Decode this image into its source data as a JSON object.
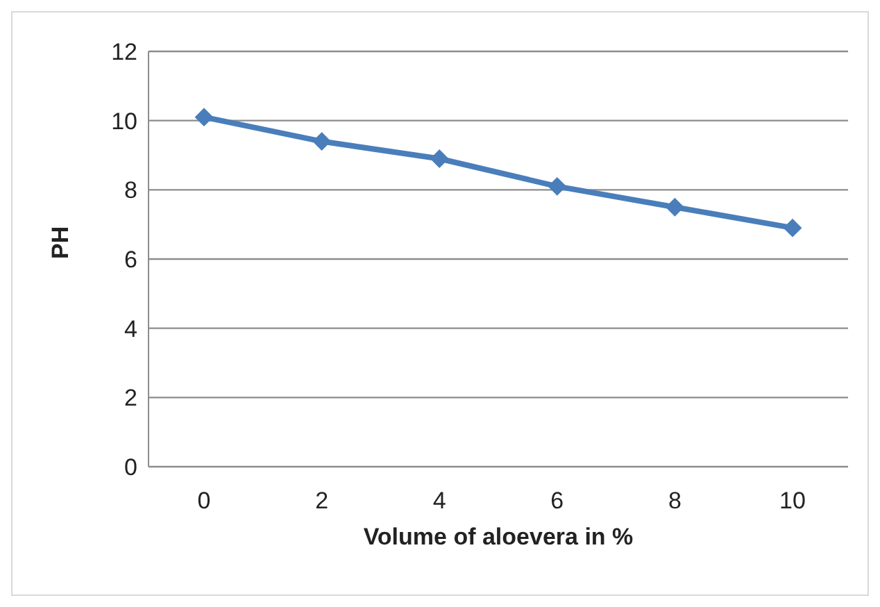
{
  "chart_data": {
    "type": "line",
    "xlabel": "Volume of  aloevera in %",
    "ylabel": "PH",
    "categories": [
      "0",
      "2",
      "4",
      "6",
      "8",
      "10"
    ],
    "series": [
      {
        "color": "#4a7ebb",
        "values": [
          10.1,
          9.4,
          8.9,
          8.1,
          7.5,
          6.9
        ]
      }
    ],
    "ylim": [
      0,
      12
    ],
    "yticks": [
      0,
      2,
      4,
      6,
      8,
      10,
      12
    ],
    "grid": "y",
    "legend": false,
    "marker": "diamond",
    "line_style": "solid"
  }
}
